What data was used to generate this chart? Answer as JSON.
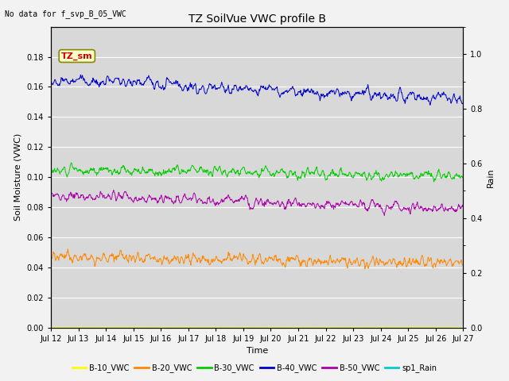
{
  "title": "TZ SoilVue VWC profile B",
  "no_data_text": "No data for f_svp_B_05_VWC",
  "ylabel_left": "Soil Moisture (VWC)",
  "ylabel_right": "Rain",
  "xlabel": "Time",
  "annotation_box_text": "TZ_sm",
  "n_days": 15,
  "ylim_left": [
    0.0,
    0.2
  ],
  "ylim_right": [
    0.0,
    1.1
  ],
  "yticks_left": [
    0.0,
    0.02,
    0.04,
    0.06,
    0.08,
    0.1,
    0.12,
    0.14,
    0.16,
    0.18
  ],
  "yticks_right": [
    0.0,
    0.2,
    0.4,
    0.6,
    0.8,
    1.0
  ],
  "xtick_labels": [
    "Jul 12",
    "Jul 13",
    "Jul 14",
    "Jul 15",
    "Jul 16",
    "Jul 17",
    "Jul 18",
    "Jul 19",
    "Jul 20",
    "Jul 21",
    "Jul 22",
    "Jul 23",
    "Jul 24",
    "Jul 25",
    "Jul 26",
    "Jul 27"
  ],
  "plot_bg_color": "#d8d8d8",
  "fig_bg_color": "#f2f2f2",
  "grid_color": "#ffffff",
  "title_fontsize": 10,
  "label_fontsize": 8,
  "tick_fontsize": 7,
  "annot_fontsize": 8,
  "nodata_fontsize": 7,
  "legend_fontsize": 7,
  "seed": 42
}
